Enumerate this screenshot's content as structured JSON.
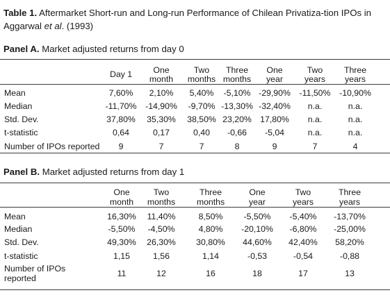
{
  "title": {
    "prefix": "Table 1.",
    "text_before": " Aftermarket Short-run and Long-run Performance of Chilean Privatiza-tion IPOs in Aggarwal ",
    "et_al": "et al",
    "text_after": ". (1993)"
  },
  "panel_a": {
    "prefix": "Panel A.",
    "text": " Market adjusted returns from day 0",
    "columns": [
      {
        "l1": "Day 1",
        "l2": ""
      },
      {
        "l1": "One",
        "l2": "month"
      },
      {
        "l1": "Two",
        "l2": "months"
      },
      {
        "l1": "Three",
        "l2": "months"
      },
      {
        "l1": "One",
        "l2": "year"
      },
      {
        "l1": "Two",
        "l2": "years"
      },
      {
        "l1": "Three",
        "l2": "years"
      }
    ],
    "rows": [
      {
        "label": "Mean",
        "values": [
          "7,60%",
          "2,10%",
          "5,40%",
          "-5,10%",
          "-29,90%",
          "-11,50%",
          "-10,90%"
        ]
      },
      {
        "label": "Median",
        "values": [
          "-11,70%",
          "-14,90%",
          "-9,70%",
          "-13,30%",
          "-32,40%",
          "n.a.",
          "n.a."
        ]
      },
      {
        "label": "Std. Dev.",
        "values": [
          "37,80%",
          "35,30%",
          "38,50%",
          "23,20%",
          "17,80%",
          "n.a.",
          "n.a."
        ]
      },
      {
        "label": "t-statistic",
        "values": [
          "0,64",
          "0,17",
          "0,40",
          "-0,66",
          "-5,04",
          "n.a.",
          "n.a."
        ]
      },
      {
        "label": "Number of IPOs reported",
        "values": [
          "9",
          "7",
          "7",
          "8",
          "9",
          "7",
          "4"
        ]
      }
    ]
  },
  "panel_b": {
    "prefix": "Panel B.",
    "text": " Market adjusted returns from day 1",
    "columns": [
      {
        "l1": "One",
        "l2": "month"
      },
      {
        "l1": "Two",
        "l2": "months"
      },
      {
        "l1": "Three",
        "l2": "months"
      },
      {
        "l1": "One",
        "l2": "year"
      },
      {
        "l1": "Two",
        "l2": "years"
      },
      {
        "l1": "Three",
        "l2": "years"
      }
    ],
    "rows": [
      {
        "label": "Mean",
        "label2": "",
        "values": [
          "16,30%",
          "11,40%",
          "8,50%",
          "-5,50%",
          "-5,40%",
          "-13,70%"
        ]
      },
      {
        "label": "Median",
        "label2": "",
        "values": [
          "-5,50%",
          "-4,50%",
          "4,80%",
          "-20,10%",
          "-6,80%",
          "-25,00%"
        ]
      },
      {
        "label": "Std. Dev.",
        "label2": "",
        "values": [
          "49,30%",
          "26,30%",
          "30,80%",
          "44,60%",
          "42,40%",
          "58,20%"
        ]
      },
      {
        "label": "t-statistic",
        "label2": "",
        "values": [
          "1,15",
          "1,56",
          "1,14",
          "-0,53",
          "-0,54",
          "-0,88"
        ]
      },
      {
        "label": "Number of IPOs",
        "label2": "reported",
        "values": [
          "11",
          "12",
          "16",
          "18",
          "17",
          "13"
        ]
      }
    ]
  }
}
